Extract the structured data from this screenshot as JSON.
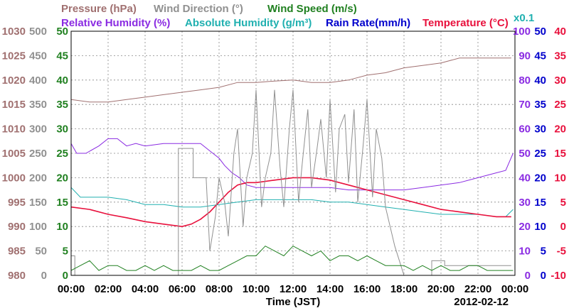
{
  "chart_data": {
    "type": "line",
    "xlabel": "Time (JST)",
    "date_label": "2012-02-12",
    "x_ticks": [
      "00:00",
      "02:00",
      "04:00",
      "06:00",
      "08:00",
      "10:00",
      "12:00",
      "14:00",
      "16:00",
      "18:00",
      "20:00",
      "22:00",
      "00:00"
    ],
    "xlim_hours": [
      0,
      24
    ],
    "legend": {
      "row1": [
        {
          "text": "Pressure (hPa)",
          "color": "#a07070"
        },
        {
          "text": "Wind Direction (°)",
          "color": "#909090"
        },
        {
          "text": "Wind Speed (m/s)",
          "color": "#208020"
        }
      ],
      "row2": [
        {
          "text": "Relative Humidity (%)",
          "color": "#8a2be2"
        },
        {
          "text": "Absolute Humidity (g/m³)",
          "color": "#20b0b0"
        },
        {
          "text": "Rain Rate(mm/h)",
          "color": "#0000cc"
        },
        {
          "text": "Temperature (°C)",
          "color": "#e8103c"
        }
      ],
      "multiplier": {
        "text": "x0.1",
        "color": "#20b0b0"
      }
    },
    "axes": {
      "pressure": {
        "color": "#a07070",
        "ticks": [
          "1030",
          "1025",
          "1020",
          "1015",
          "1010",
          "1005",
          "1000",
          "995",
          "990",
          "985",
          "980"
        ],
        "range": [
          980,
          1030
        ]
      },
      "wind_direction": {
        "color": "#909090",
        "ticks": [
          "500",
          "450",
          "400",
          "350",
          "300",
          "250",
          "200",
          "150",
          "100",
          "50",
          "0"
        ],
        "range": [
          0,
          500
        ]
      },
      "wind_speed": {
        "color": "#208020",
        "ticks": [
          "50",
          "45",
          "40",
          "35",
          "30",
          "25",
          "20",
          "15",
          "10",
          "5",
          "0"
        ],
        "range": [
          0,
          50
        ]
      },
      "humidity": {
        "color": "#8a2be2",
        "ticks": [
          "100",
          "90",
          "80",
          "70",
          "60",
          "50",
          "40",
          "30",
          "20",
          "10",
          "0"
        ],
        "range": [
          0,
          100
        ]
      },
      "rain_rate": {
        "color": "#0000cc",
        "ticks": [
          "50",
          "45",
          "40",
          "35",
          "30",
          "25",
          "20",
          "15",
          "10",
          "5",
          "0"
        ],
        "range": [
          0,
          50
        ]
      },
      "temperature": {
        "color": "#e8103c",
        "ticks": [
          "40",
          "35",
          "30",
          "25",
          "20",
          "15",
          "10",
          "5",
          "0",
          "-5",
          "-10"
        ],
        "range": [
          -10,
          40
        ]
      }
    },
    "series": [
      {
        "name": "Pressure (hPa)",
        "axis": "pressure",
        "color": "#a07070",
        "x": [
          0,
          1,
          2,
          3,
          4,
          5,
          6,
          7,
          8,
          9,
          10,
          11,
          12,
          13,
          14,
          15,
          16,
          17,
          18,
          19,
          20,
          21,
          22,
          23,
          23.8
        ],
        "y": [
          1016,
          1015.5,
          1015.5,
          1016,
          1016.5,
          1017,
          1017.5,
          1018,
          1018.5,
          1019.5,
          1019.5,
          1019.8,
          1020,
          1019.5,
          1019.5,
          1020,
          1021,
          1021.5,
          1022.5,
          1023,
          1023.5,
          1024.5,
          1024.5,
          1024.5,
          1024.5
        ]
      },
      {
        "name": "Relative Humidity (%)",
        "axis": "humidity",
        "color": "#8a2be2",
        "x": [
          0,
          0.3,
          0.8,
          1.5,
          2,
          2.5,
          3,
          3.5,
          4,
          5,
          6,
          6.5,
          7,
          7.5,
          8,
          8.3,
          8.7,
          9.1,
          9.5,
          10,
          11,
          12,
          13,
          14,
          15,
          16,
          17,
          18,
          19,
          20,
          21,
          22,
          23,
          23.5,
          23.9
        ],
        "y": [
          54,
          50,
          50,
          53,
          56,
          56,
          53,
          54,
          53,
          54,
          54,
          54,
          54,
          51,
          48,
          45,
          42,
          40,
          37,
          36,
          36,
          36,
          36,
          36,
          35,
          35,
          35,
          35,
          36,
          37,
          38,
          40,
          42,
          43,
          50
        ]
      },
      {
        "name": "Absolute Humidity (g/m³)",
        "axis": "humidity",
        "color": "#20b0b0",
        "x": [
          0,
          0.5,
          1,
          2,
          3,
          4,
          5,
          6,
          7,
          8,
          9,
          10,
          11,
          12,
          13,
          14,
          15,
          16,
          17,
          18,
          19,
          20,
          21,
          22,
          23,
          23.5,
          23.9
        ],
        "y": [
          36,
          32,
          32,
          32,
          31,
          29,
          29,
          28,
          28,
          29,
          30,
          31,
          31,
          31,
          31,
          30,
          30,
          29,
          28,
          27,
          26,
          25,
          25,
          25,
          24,
          24,
          27
        ]
      },
      {
        "name": "Temperature (°C)",
        "axis": "temperature",
        "color": "#e8103c",
        "x": [
          0,
          1,
          2,
          3,
          4,
          5,
          6,
          6.5,
          7,
          7.5,
          8,
          8.5,
          9,
          9.5,
          10,
          11,
          12,
          13,
          14,
          15,
          16,
          17,
          18,
          19,
          20,
          21,
          22,
          23,
          23.8
        ],
        "y": [
          4,
          3.5,
          2.5,
          1.8,
          1,
          0.5,
          0,
          0.5,
          1.5,
          3,
          5,
          7,
          8.5,
          9,
          9,
          9.5,
          10,
          10,
          9.5,
          8.5,
          7.5,
          6.5,
          5.5,
          4.5,
          3.5,
          3,
          2.5,
          2,
          2
        ]
      },
      {
        "name": "Wind Direction (°)",
        "axis": "wind_direction",
        "color": "#909090",
        "x": [
          0,
          0.2,
          0.2,
          0.7,
          0.7,
          5.8,
          5.8,
          6.6,
          6.6,
          7,
          7.3,
          7.5,
          7.8,
          8,
          8.3,
          8.5,
          8.8,
          9,
          9.3,
          9.5,
          9.8,
          10,
          10.3,
          10.5,
          10.8,
          11,
          11.3,
          11.5,
          11.8,
          12,
          12.3,
          12.5,
          12.8,
          13,
          13.3,
          13.5,
          13.8,
          14,
          14.3,
          14.5,
          14.8,
          15,
          15.3,
          15.5,
          15.8,
          16,
          16.3,
          16.5,
          16.8,
          17,
          17.5,
          18,
          19,
          19.5,
          19.5,
          20.2,
          20.2,
          23.8
        ],
        "y": [
          40,
          40,
          0,
          0,
          0,
          0,
          260,
          260,
          200,
          200,
          200,
          50,
          120,
          200,
          150,
          80,
          250,
          300,
          100,
          200,
          250,
          380,
          140,
          200,
          250,
          380,
          220,
          140,
          300,
          380,
          150,
          230,
          340,
          180,
          260,
          320,
          200,
          360,
          170,
          300,
          330,
          190,
          340,
          150,
          270,
          360,
          160,
          300,
          240,
          140,
          60,
          0,
          0,
          0,
          30,
          30,
          20,
          20
        ]
      },
      {
        "name": "Wind Speed (m/s)",
        "axis": "wind_speed",
        "color": "#208020",
        "x": [
          0,
          0.5,
          1,
          1.5,
          2,
          2.5,
          3,
          3.5,
          4,
          4.5,
          5,
          5.5,
          6,
          6.5,
          7,
          7.5,
          8,
          8.5,
          9,
          9.5,
          10,
          10.5,
          11,
          11.5,
          12,
          12.5,
          13,
          13.5,
          14,
          14.5,
          15,
          15.5,
          16,
          16.5,
          17,
          17.5,
          18,
          18.5,
          19,
          19.5,
          20,
          20.5,
          21,
          21.5,
          22,
          22.5,
          23,
          23.5,
          23.9
        ],
        "y": [
          1,
          2,
          3,
          1,
          2,
          2,
          1,
          1,
          2,
          1,
          2,
          1,
          1,
          1,
          2,
          1,
          1,
          2,
          3,
          4,
          4,
          6,
          5,
          4,
          6,
          5,
          4,
          5,
          3,
          4,
          4,
          3,
          4,
          3,
          2,
          2,
          2,
          1,
          2,
          1,
          2,
          1,
          1,
          2,
          2,
          1,
          1,
          1,
          1
        ]
      },
      {
        "name": "Rain Rate(mm/h)",
        "axis": "rain_rate",
        "color": "#0000cc",
        "x": [
          0,
          24
        ],
        "y": [
          0,
          0
        ]
      }
    ]
  }
}
